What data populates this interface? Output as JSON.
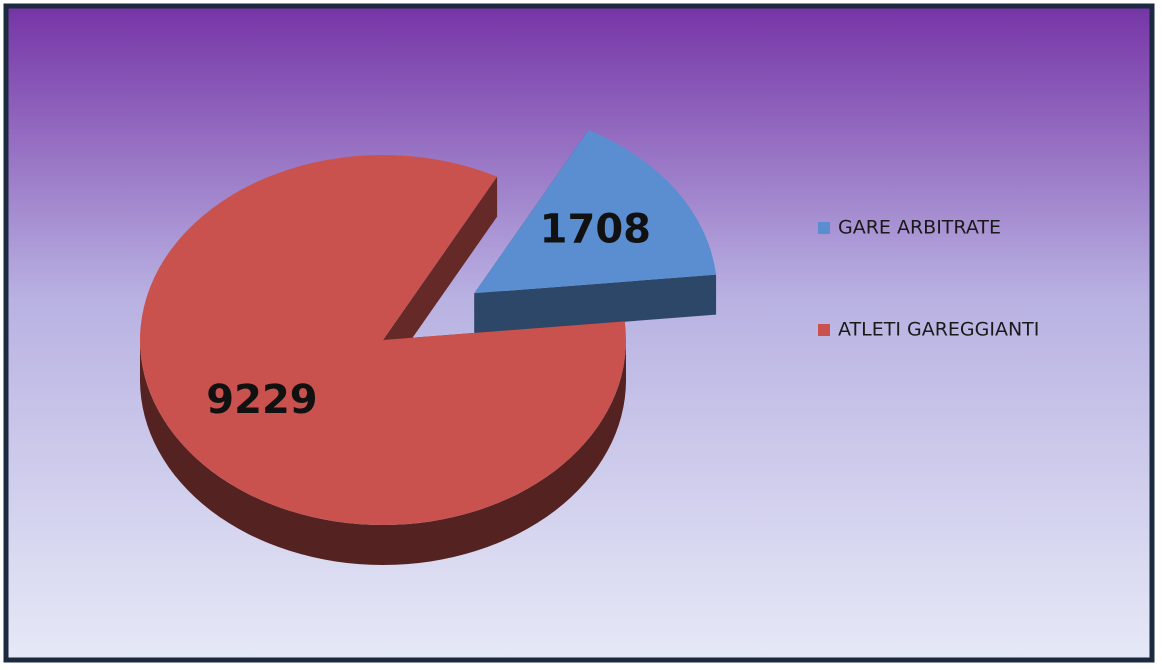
{
  "chart_data": {
    "type": "pie",
    "categories": [
      "GARE ARBITRATE",
      "ATLETI GAREGGIANTI"
    ],
    "values": [
      1708,
      9229
    ],
    "colors": [
      "#5a8ed0",
      "#c9524f"
    ]
  }
}
